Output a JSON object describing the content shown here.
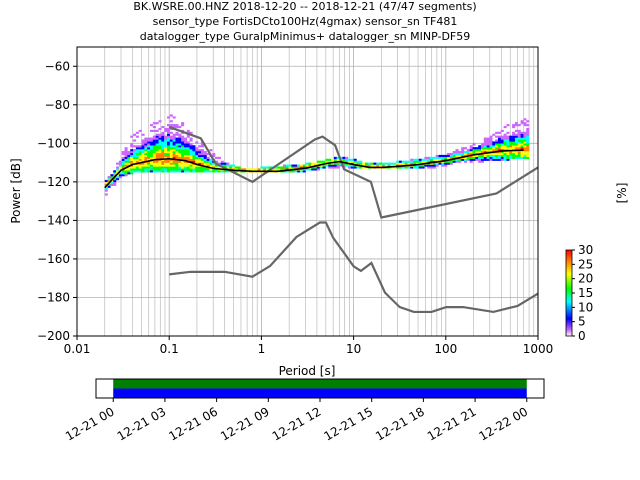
{
  "title": {
    "line1": "BK.WSRE.00.HNZ   2018-12-20 -- 2018-12-21  (47/47 segments)",
    "line2": "sensor_type FortisDCto100Hz(4gmax) sensor_sn TF481",
    "line3": "datalogger_type GuralpMinimus+ datalogger_sn MINP-DF59"
  },
  "chart_data": [
    {
      "type": "heatmap",
      "xlabel": "Period [s]",
      "ylabel": "Power [dB]",
      "x_scale": "log",
      "xlim": [
        0.01,
        1000
      ],
      "ylim": [
        -200,
        -50
      ],
      "grid": true,
      "x_ticks": [
        {
          "value": 0.01,
          "label": "0.01"
        },
        {
          "value": 0.1,
          "label": "0.1"
        },
        {
          "value": 1,
          "label": "1"
        },
        {
          "value": 10,
          "label": "10"
        },
        {
          "value": 100,
          "label": "100"
        },
        {
          "value": 1000,
          "label": "1000"
        }
      ],
      "y_ticks": [
        -60,
        -80,
        -100,
        -120,
        -140,
        -160,
        -180,
        -200
      ],
      "y_tick_labels": [
        "−60",
        "−80",
        "−100",
        "−120",
        "−140",
        "−160",
        "−180",
        "−200"
      ],
      "colorbar": {
        "label": "[%]",
        "range": [
          0,
          30
        ],
        "ticks": [
          0,
          5,
          10,
          15,
          20,
          25,
          30
        ],
        "colormap": [
          "#ffffff",
          "#cc66ff",
          "#0000ff",
          "#00ffff",
          "#00ff00",
          "#ffff00",
          "#ff8000",
          "#ff0000"
        ]
      },
      "noise_models": {
        "color": "#666666",
        "high": {
          "x": [
            0.1,
            0.22,
            0.32,
            0.8,
            3.8,
            4.6,
            6.3,
            7.9,
            15.4,
            20,
            354.8,
            1000
          ],
          "y": [
            -91.5,
            -97.4,
            -110.5,
            -120,
            -98,
            -96.5,
            -101,
            -113.5,
            -120,
            -138.5,
            -126,
            -112.5
          ]
        },
        "low": {
          "x": [
            0.1,
            0.17,
            0.4,
            0.8,
            1.24,
            2.4,
            4.3,
            5,
            6,
            10,
            12,
            15.6,
            21.9,
            31.6,
            45,
            70,
            101,
            154,
            328,
            600,
            1000
          ],
          "y": [
            -168,
            -166.7,
            -166.7,
            -169.2,
            -163.7,
            -148.6,
            -141.1,
            -141.1,
            -149,
            -163.8,
            -166.2,
            -162.1,
            -177.5,
            -185,
            -187.5,
            -187.5,
            -185,
            -185,
            -187.5,
            -184.4,
            -178
          ]
        }
      },
      "mode_curve": {
        "color": "#000000",
        "x": [
          0.02,
          0.025,
          0.03,
          0.04,
          0.05,
          0.07,
          0.1,
          0.15,
          0.2,
          0.3,
          0.5,
          0.8,
          1.5,
          3,
          5,
          7,
          10,
          15,
          20,
          30,
          50,
          100,
          200,
          400,
          700
        ],
        "y": [
          -123,
          -118,
          -114,
          -111,
          -110,
          -108.5,
          -108,
          -109,
          -111,
          -113,
          -114,
          -114.5,
          -114.5,
          -113,
          -110.5,
          -109.5,
          -111,
          -112.5,
          -112.5,
          -112,
          -111,
          -109,
          -106,
          -104,
          -103.5
        ]
      },
      "density": {
        "x_range": [
          0.02,
          800
        ],
        "upper_y": {
          "x": [
            0.02,
            0.025,
            0.03,
            0.04,
            0.06,
            0.08,
            0.1,
            0.15,
            0.2,
            0.3,
            0.4,
            0.6,
            1,
            3,
            5,
            8,
            12,
            20,
            40,
            80,
            150,
            300,
            500,
            800
          ],
          "y": [
            -122,
            -115,
            -108,
            -97,
            -92,
            -88,
            -86,
            -92,
            -98,
            -106,
            -111,
            -114,
            -114,
            -112,
            -110,
            -108,
            -111,
            -112,
            -110,
            -108,
            -104,
            -98,
            -91,
            -88
          ]
        },
        "lower_y": {
          "x": [
            0.02,
            0.025,
            0.03,
            0.04,
            0.06,
            0.1,
            0.2,
            0.4,
            1,
            3,
            5,
            8,
            12,
            20,
            40,
            80,
            150,
            300,
            500,
            800
          ],
          "y": [
            -127,
            -122,
            -117,
            -115,
            -115,
            -115,
            -115,
            -115,
            -115,
            -114,
            -113,
            -112,
            -113,
            -113,
            -113,
            -112,
            -110,
            -109,
            -108,
            -108
          ]
        }
      }
    },
    {
      "type": "timeline",
      "xlim": [
        "2018-12-20T23:00",
        "2018-12-22T01:00"
      ],
      "x_ticks": [
        "12-21 00",
        "12-21 03",
        "12-21 06",
        "12-21 09",
        "12-21 12",
        "12-21 15",
        "12-21 18",
        "12-21 21",
        "12-22 00"
      ],
      "coverage": [
        {
          "start": "2018-12-21T00:00",
          "end": "2018-12-22T00:00",
          "color": "#008000"
        },
        {
          "start": "2018-12-21T00:00",
          "end": "2018-12-22T00:00",
          "color": "#0000ff"
        }
      ]
    }
  ]
}
